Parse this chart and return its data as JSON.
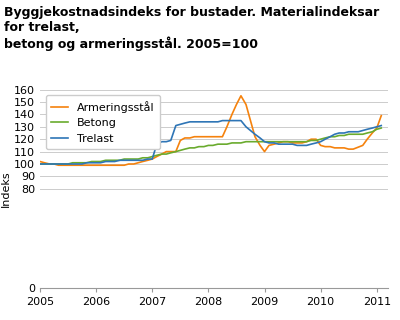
{
  "title": "Byggjekostnadsindeks for bustader. Materialindeksar for trelast,\nbetong og armeringsstål. 2005=100",
  "ylabel": "Indeks",
  "colors": {
    "Armeringsstål": "#F5820D",
    "Betong": "#6AAB2E",
    "Trelast": "#2E75B6"
  },
  "ylim": [
    0,
    160
  ],
  "yticks": [
    0,
    80,
    90,
    100,
    110,
    120,
    130,
    140,
    150,
    160
  ],
  "xticks": [
    2005,
    2006,
    2007,
    2008,
    2009,
    2010,
    2011
  ],
  "x_armeringsstaal": [
    2005.0,
    2005.08,
    2005.17,
    2005.25,
    2005.33,
    2005.42,
    2005.5,
    2005.58,
    2005.67,
    2005.75,
    2005.83,
    2005.92,
    2006.0,
    2006.08,
    2006.17,
    2006.25,
    2006.33,
    2006.42,
    2006.5,
    2006.58,
    2006.67,
    2006.75,
    2006.83,
    2006.92,
    2007.0,
    2007.08,
    2007.17,
    2007.25,
    2007.33,
    2007.42,
    2007.5,
    2007.58,
    2007.67,
    2007.75,
    2007.83,
    2007.92,
    2008.0,
    2008.08,
    2008.17,
    2008.25,
    2008.33,
    2008.42,
    2008.5,
    2008.58,
    2008.67,
    2008.75,
    2008.83,
    2008.92,
    2009.0,
    2009.08,
    2009.17,
    2009.25,
    2009.33,
    2009.42,
    2009.5,
    2009.58,
    2009.67,
    2009.75,
    2009.83,
    2009.92,
    2010.0,
    2010.08,
    2010.17,
    2010.25,
    2010.33,
    2010.42,
    2010.5,
    2010.58,
    2010.75,
    2010.83,
    2010.92,
    2011.0,
    2011.08
  ],
  "y_armeringsstaal": [
    102,
    101,
    100,
    100,
    99,
    99,
    99,
    99,
    99,
    99,
    99,
    99,
    99,
    99,
    99,
    99,
    99,
    99,
    99,
    100,
    100,
    101,
    102,
    103,
    104,
    106,
    108,
    110,
    110,
    110,
    119,
    121,
    121,
    122,
    122,
    122,
    122,
    122,
    122,
    122,
    130,
    140,
    148,
    155,
    148,
    135,
    122,
    115,
    110,
    115,
    116,
    117,
    118,
    118,
    117,
    117,
    117,
    118,
    120,
    120,
    115,
    114,
    114,
    113,
    113,
    113,
    112,
    112,
    115,
    120,
    125,
    129,
    139
  ],
  "x_betong": [
    2005.0,
    2005.08,
    2005.17,
    2005.25,
    2005.33,
    2005.42,
    2005.5,
    2005.58,
    2005.67,
    2005.75,
    2005.83,
    2005.92,
    2006.0,
    2006.08,
    2006.17,
    2006.25,
    2006.33,
    2006.42,
    2006.5,
    2006.58,
    2006.67,
    2006.75,
    2006.83,
    2006.92,
    2007.0,
    2007.08,
    2007.17,
    2007.25,
    2007.33,
    2007.42,
    2007.5,
    2007.58,
    2007.67,
    2007.75,
    2007.83,
    2007.92,
    2008.0,
    2008.08,
    2008.17,
    2008.25,
    2008.33,
    2008.42,
    2008.5,
    2008.58,
    2008.67,
    2008.75,
    2008.83,
    2008.92,
    2009.0,
    2009.08,
    2009.17,
    2009.25,
    2009.33,
    2009.42,
    2009.5,
    2009.58,
    2009.67,
    2009.75,
    2009.83,
    2009.92,
    2010.0,
    2010.08,
    2010.17,
    2010.25,
    2010.33,
    2010.42,
    2010.5,
    2010.58,
    2010.67,
    2010.75,
    2010.83,
    2010.92,
    2011.0,
    2011.08
  ],
  "y_betong": [
    100,
    100,
    100,
    100,
    100,
    100,
    100,
    101,
    101,
    101,
    101,
    102,
    102,
    102,
    103,
    103,
    103,
    103,
    104,
    104,
    104,
    104,
    105,
    105,
    106,
    107,
    108,
    108,
    109,
    110,
    111,
    112,
    113,
    113,
    114,
    114,
    115,
    115,
    116,
    116,
    116,
    117,
    117,
    117,
    118,
    118,
    118,
    118,
    118,
    118,
    118,
    118,
    118,
    118,
    118,
    118,
    118,
    118,
    119,
    119,
    120,
    121,
    122,
    122,
    123,
    123,
    124,
    124,
    124,
    124,
    125,
    126,
    128,
    129
  ],
  "x_trelast": [
    2005.0,
    2005.08,
    2005.17,
    2005.25,
    2005.33,
    2005.42,
    2005.5,
    2005.58,
    2005.67,
    2005.75,
    2005.83,
    2005.92,
    2006.0,
    2006.08,
    2006.17,
    2006.25,
    2006.33,
    2006.42,
    2006.5,
    2006.58,
    2006.67,
    2006.75,
    2006.83,
    2006.92,
    2007.0,
    2007.08,
    2007.17,
    2007.25,
    2007.33,
    2007.42,
    2007.5,
    2007.58,
    2007.67,
    2007.75,
    2007.83,
    2007.92,
    2008.0,
    2008.08,
    2008.17,
    2008.25,
    2008.33,
    2008.42,
    2008.5,
    2008.58,
    2008.67,
    2008.75,
    2008.83,
    2008.92,
    2009.0,
    2009.08,
    2009.17,
    2009.25,
    2009.33,
    2009.42,
    2009.5,
    2009.58,
    2009.67,
    2009.75,
    2009.83,
    2009.92,
    2010.0,
    2010.08,
    2010.17,
    2010.25,
    2010.33,
    2010.42,
    2010.5,
    2010.58,
    2010.67,
    2010.75,
    2010.83,
    2010.92,
    2011.0,
    2011.08
  ],
  "y_trelast": [
    100,
    100,
    100,
    100,
    100,
    100,
    100,
    100,
    100,
    100,
    101,
    101,
    101,
    101,
    102,
    102,
    102,
    103,
    103,
    103,
    103,
    103,
    103,
    104,
    104,
    116,
    118,
    118,
    119,
    131,
    132,
    133,
    134,
    134,
    134,
    134,
    134,
    134,
    134,
    135,
    135,
    135,
    135,
    135,
    130,
    127,
    124,
    121,
    118,
    117,
    117,
    116,
    116,
    116,
    116,
    115,
    115,
    115,
    116,
    117,
    118,
    120,
    122,
    124,
    125,
    125,
    126,
    126,
    126,
    127,
    128,
    129,
    130,
    131
  ],
  "legend_loc": "upper left",
  "grid_color": "#CCCCCC",
  "bg_color": "#FFFFFF",
  "title_fontsize": 9,
  "label_fontsize": 8,
  "tick_fontsize": 8,
  "legend_fontsize": 8
}
